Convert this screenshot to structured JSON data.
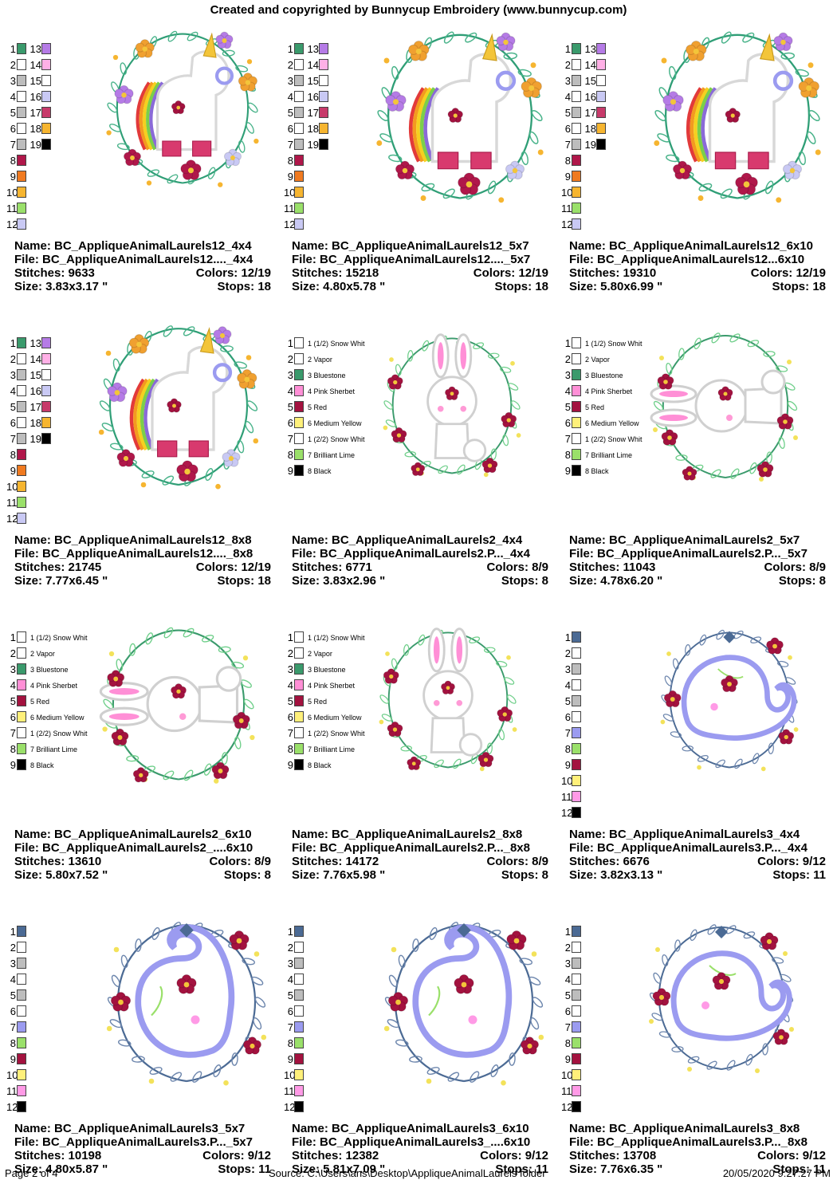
{
  "header": {
    "title": "Created and copyrighted by Bunnycup Embroidery (www.bunnycup.com)"
  },
  "footer": {
    "page": "Page 2 of 4",
    "source": "Source: C:\\Users\\ans\\Desktop\\AppliqueAnimalLaurels folder",
    "datetime": "20/05/2020 9:27:27 PM"
  },
  "palettes": {
    "unicorn": [
      {
        "n": "1",
        "c": "#3a9a6c"
      },
      {
        "n": "2",
        "c": "#ffffff"
      },
      {
        "n": "3",
        "c": "#bdbdbd"
      },
      {
        "n": "4",
        "c": "#ffffff"
      },
      {
        "n": "5",
        "c": "#bdbdbd"
      },
      {
        "n": "6",
        "c": "#ffffff"
      },
      {
        "n": "7",
        "c": "#bdbdbd"
      },
      {
        "n": "8",
        "c": "#b0174a"
      },
      {
        "n": "9",
        "c": "#f07a20"
      },
      {
        "n": "10",
        "c": "#f6b530"
      },
      {
        "n": "11",
        "c": "#9ae06a"
      },
      {
        "n": "12",
        "c": "#c9c9f4"
      },
      {
        "n": "13",
        "c": "#b57be6"
      },
      {
        "n": "14",
        "c": "#ffb0e6"
      },
      {
        "n": "15",
        "c": "#ffffff"
      },
      {
        "n": "16",
        "c": "#c9c9f4"
      },
      {
        "n": "17",
        "c": "#c73a6a"
      },
      {
        "n": "18",
        "c": "#f6b530"
      },
      {
        "n": "19",
        "c": "#000000"
      }
    ],
    "bunny": [
      {
        "n": "1",
        "c": "#ffffff",
        "l": "1 (1/2) Snow Whit"
      },
      {
        "n": "2",
        "c": "#ffffff",
        "l": "2 Vapor"
      },
      {
        "n": "3",
        "c": "#3a9a6c",
        "l": "3 Bluestone"
      },
      {
        "n": "4",
        "c": "#ff8fd6",
        "l": "4 Pink Sherbet"
      },
      {
        "n": "5",
        "c": "#a3123f",
        "l": "5 Red"
      },
      {
        "n": "6",
        "c": "#fff07a",
        "l": "6 Medium Yellow"
      },
      {
        "n": "7",
        "c": "#ffffff",
        "l": "1 (2/2) Snow Whit"
      },
      {
        "n": "8",
        "c": "#9ae06a",
        "l": "7 Brilliant Lime"
      },
      {
        "n": "9",
        "c": "#000000",
        "l": "8 Black"
      }
    ],
    "whale": [
      {
        "n": "1",
        "c": "#4b6a94"
      },
      {
        "n": "2",
        "c": "#ffffff"
      },
      {
        "n": "3",
        "c": "#bdbdbd"
      },
      {
        "n": "4",
        "c": "#ffffff"
      },
      {
        "n": "5",
        "c": "#bdbdbd"
      },
      {
        "n": "6",
        "c": "#ffffff"
      },
      {
        "n": "7",
        "c": "#9b9bf0"
      },
      {
        "n": "8",
        "c": "#9ae06a"
      },
      {
        "n": "9",
        "c": "#a3123f"
      },
      {
        "n": "10",
        "c": "#fff07a"
      },
      {
        "n": "11",
        "c": "#ff9ae6"
      },
      {
        "n": "12",
        "c": "#000000"
      }
    ]
  },
  "designs": [
    {
      "name": "Name: BC_AppliqueAnimalLaurels12_4x4",
      "file": "File: BC_AppliqueAnimalLaurels12...._4x4",
      "stitches": "Stitches: 9633",
      "colors": "Colors: 12/19",
      "size": "Size: 3.83x3.17 \"",
      "stops": "Stops: 18"
    },
    {
      "name": "Name: BC_AppliqueAnimalLaurels12_5x7",
      "file": "File: BC_AppliqueAnimalLaurels12...._5x7",
      "stitches": "Stitches: 15218",
      "colors": "Colors: 12/19",
      "size": "Size: 4.80x5.78 \"",
      "stops": "Stops: 18"
    },
    {
      "name": "Name: BC_AppliqueAnimalLaurels12_6x10",
      "file": "File: BC_AppliqueAnimalLaurels12...6x10",
      "stitches": "Stitches: 19310",
      "colors": "Colors: 12/19",
      "size": "Size: 5.80x6.99 \"",
      "stops": "Stops: 18"
    },
    {
      "name": "Name: BC_AppliqueAnimalLaurels12_8x8",
      "file": "File: BC_AppliqueAnimalLaurels12...._8x8",
      "stitches": "Stitches: 21745",
      "colors": "Colors: 12/19",
      "size": "Size: 7.77x6.45 \"",
      "stops": "Stops: 18"
    },
    {
      "name": "Name: BC_AppliqueAnimalLaurels2_4x4",
      "file": "File: BC_AppliqueAnimalLaurels2.P..._4x4",
      "stitches": "Stitches: 6771",
      "colors": "Colors: 8/9",
      "size": "Size: 3.83x2.96 \"",
      "stops": "Stops: 8"
    },
    {
      "name": "Name: BC_AppliqueAnimalLaurels2_5x7",
      "file": "File: BC_AppliqueAnimalLaurels2.P..._5x7",
      "stitches": "Stitches: 11043",
      "colors": "Colors: 8/9",
      "size": "Size: 4.78x6.20 \"",
      "stops": "Stops: 8"
    },
    {
      "name": "Name: BC_AppliqueAnimalLaurels2_6x10",
      "file": "File: BC_AppliqueAnimalLaurels2_....6x10",
      "stitches": "Stitches: 13610",
      "colors": "Colors: 8/9",
      "size": "Size: 5.80x7.52 \"",
      "stops": "Stops: 8"
    },
    {
      "name": "Name: BC_AppliqueAnimalLaurels2_8x8",
      "file": "File: BC_AppliqueAnimalLaurels2.P..._8x8",
      "stitches": "Stitches: 14172",
      "colors": "Colors: 8/9",
      "size": "Size: 7.76x5.98 \"",
      "stops": "Stops: 8"
    },
    {
      "name": "Name: BC_AppliqueAnimalLaurels3_4x4",
      "file": "File: BC_AppliqueAnimalLaurels3.P..._4x4",
      "stitches": "Stitches: 6676",
      "colors": "Colors: 9/12",
      "size": "Size: 3.82x3.13 \"",
      "stops": "Stops: 11"
    },
    {
      "name": "Name: BC_AppliqueAnimalLaurels3_5x7",
      "file": "File: BC_AppliqueAnimalLaurels3.P..._5x7",
      "stitches": "Stitches: 10198",
      "colors": "Colors: 9/12",
      "size": "Size: 4.80x5.87 \"",
      "stops": "Stops: 11"
    },
    {
      "name": "Name: BC_AppliqueAnimalLaurels3_6x10",
      "file": "File: BC_AppliqueAnimalLaurels3_....6x10",
      "stitches": "Stitches: 12382",
      "colors": "Colors: 9/12",
      "size": "Size: 5.81x7.09 \"",
      "stops": "Stops: 11"
    },
    {
      "name": "Name: BC_AppliqueAnimalLaurels3_8x8",
      "file": "File: BC_AppliqueAnimalLaurels3.P..._8x8",
      "stitches": "Stitches: 13708",
      "colors": "Colors: 9/12",
      "size": "Size: 7.76x6.35 \"",
      "stops": "Stops: 11"
    }
  ]
}
